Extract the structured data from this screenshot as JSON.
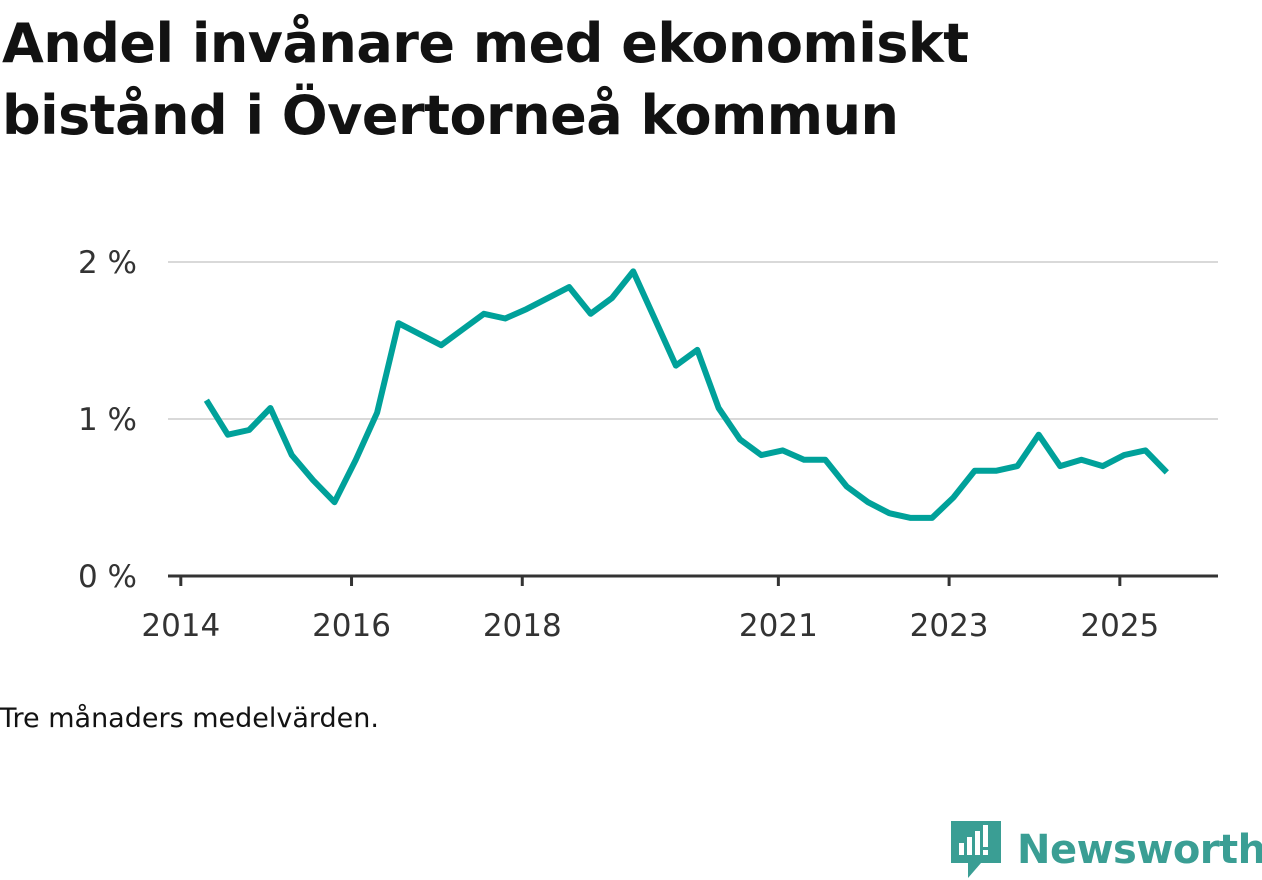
{
  "header": {
    "title": "Andel invånare med ekonomiskt bistånd i Övertorneå kommun"
  },
  "footer": {
    "note": "Tre månaders medelvärden."
  },
  "brand": {
    "name": "Newsworthy",
    "color": "#3a9e94"
  },
  "colors": {
    "line": "#00a19a",
    "grid": "#d9d9d9",
    "axis": "#333333"
  },
  "chart_data": {
    "type": "line",
    "title": "Andel invånare med ekonomiskt bistånd i Övertorneå kommun",
    "xlabel": "",
    "ylabel": "",
    "ylim": [
      0,
      2
    ],
    "xlim": [
      2013.85,
      2026.15
    ],
    "grid": true,
    "y_ticks": [
      {
        "value": 0,
        "label": "0 %"
      },
      {
        "value": 1,
        "label": "1 %"
      },
      {
        "value": 2,
        "label": "2 %"
      }
    ],
    "x_ticks": [
      {
        "value": 2014,
        "label": "2014"
      },
      {
        "value": 2016,
        "label": "2016"
      },
      {
        "value": 2018,
        "label": "2018"
      },
      {
        "value": 2021,
        "label": "2021"
      },
      {
        "value": 2023,
        "label": "2023"
      },
      {
        "value": 2025,
        "label": "2025"
      }
    ],
    "series": [
      {
        "name": "Andel invånare med ekonomiskt bistånd",
        "x": [
          2014.3,
          2014.55,
          2014.8,
          2015.05,
          2015.3,
          2015.55,
          2015.8,
          2016.05,
          2016.3,
          2016.55,
          2016.8,
          2017.05,
          2017.3,
          2017.55,
          2017.8,
          2018.05,
          2018.3,
          2018.55,
          2018.8,
          2019.05,
          2019.3,
          2019.55,
          2019.8,
          2020.05,
          2020.3,
          2020.55,
          2020.8,
          2021.05,
          2021.3,
          2021.55,
          2021.8,
          2022.05,
          2022.3,
          2022.55,
          2022.8,
          2023.05,
          2023.3,
          2023.55,
          2023.8,
          2024.05,
          2024.3,
          2024.55,
          2024.8,
          2025.05,
          2025.3,
          2025.55
        ],
        "values": [
          1.12,
          0.9,
          0.93,
          1.07,
          0.77,
          0.61,
          0.47,
          0.74,
          1.04,
          1.61,
          1.54,
          1.47,
          1.57,
          1.67,
          1.64,
          1.7,
          1.77,
          1.84,
          1.67,
          1.77,
          1.94,
          1.64,
          1.34,
          1.44,
          1.07,
          0.87,
          0.77,
          0.8,
          0.74,
          0.74,
          0.57,
          0.47,
          0.4,
          0.37,
          0.37,
          0.5,
          0.67,
          0.67,
          0.7,
          0.9,
          0.7,
          0.74,
          0.7,
          0.77,
          0.8,
          0.66
        ]
      }
    ]
  }
}
